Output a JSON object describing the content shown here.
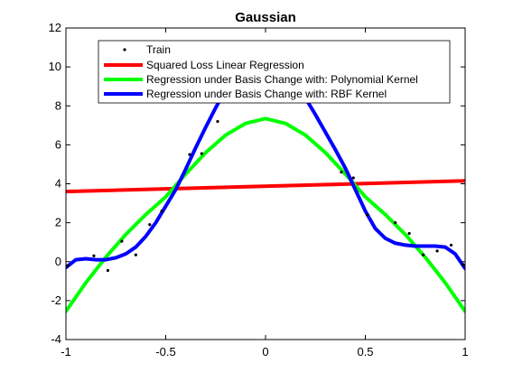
{
  "chart_data": {
    "type": "line",
    "title": "Gaussian",
    "xlabel": "",
    "ylabel": "",
    "xlim": [
      -1,
      1
    ],
    "ylim": [
      -4,
      12
    ],
    "x_ticks": [
      -1,
      -0.5,
      0,
      0.5,
      1
    ],
    "x_tick_labels": [
      "-1",
      "-0.5",
      "0",
      "0.5",
      "1"
    ],
    "y_ticks": [
      -4,
      -2,
      0,
      2,
      4,
      6,
      8,
      10,
      12
    ],
    "y_tick_labels": [
      "-4",
      "-2",
      "0",
      "2",
      "4",
      "6",
      "8",
      "10",
      "12"
    ],
    "grid": false,
    "legend_position": "top-right",
    "series": [
      {
        "name": "Train",
        "style": "points",
        "color": "#000000",
        "points": [
          [
            -0.99,
            -0.2
          ],
          [
            -0.86,
            0.3
          ],
          [
            -0.79,
            -0.45
          ],
          [
            -0.72,
            1.05
          ],
          [
            -0.65,
            0.35
          ],
          [
            -0.58,
            1.9
          ],
          [
            -0.52,
            2.6
          ],
          [
            -0.38,
            5.5
          ],
          [
            -0.32,
            5.55
          ],
          [
            -0.24,
            7.2
          ],
          [
            0.38,
            4.6
          ],
          [
            0.44,
            4.3
          ],
          [
            0.51,
            2.4
          ],
          [
            0.65,
            2.0
          ],
          [
            0.72,
            1.45
          ],
          [
            0.79,
            0.35
          ],
          [
            0.86,
            0.55
          ],
          [
            0.93,
            0.85
          ],
          [
            0.99,
            -0.15
          ]
        ]
      },
      {
        "name": "Squared Loss Linear Regression",
        "style": "line",
        "color": "#ff0000",
        "x": [
          -1,
          1
        ],
        "y": [
          3.6,
          4.15
        ]
      },
      {
        "name": "Regression under Basis Change with: Polynomial Kernel",
        "style": "line",
        "color": "#00ff00",
        "x": [
          -1,
          -0.9,
          -0.8,
          -0.7,
          -0.6,
          -0.5,
          -0.4,
          -0.3,
          -0.2,
          -0.1,
          0,
          0.1,
          0.2,
          0.3,
          0.4,
          0.5,
          0.6,
          0.7,
          0.8,
          0.9,
          1
        ],
        "y": [
          -2.55,
          -1.08,
          0.23,
          1.4,
          2.42,
          3.33,
          4.5,
          5.6,
          6.5,
          7.1,
          7.35,
          7.1,
          6.5,
          5.6,
          4.5,
          3.33,
          2.42,
          1.4,
          0.23,
          -1.08,
          -2.55
        ]
      },
      {
        "name": "Regression under Basis Change with: RBF Kernel",
        "style": "line",
        "color": "#0000ff",
        "x": [
          -1,
          -0.95,
          -0.9,
          -0.85,
          -0.8,
          -0.75,
          -0.7,
          -0.65,
          -0.6,
          -0.55,
          -0.5,
          -0.45,
          -0.4,
          -0.35,
          -0.3,
          -0.25,
          -0.2,
          -0.15,
          -0.1,
          -0.05,
          0,
          0.05,
          0.1,
          0.15,
          0.2,
          0.25,
          0.3,
          0.35,
          0.4,
          0.45,
          0.5,
          0.55,
          0.6,
          0.65,
          0.7,
          0.75,
          0.8,
          0.85,
          0.9,
          0.95,
          1
        ],
        "y": [
          -0.3,
          0.1,
          0.15,
          0.1,
          0.1,
          0.2,
          0.4,
          0.75,
          1.3,
          2.0,
          2.85,
          3.7,
          4.75,
          5.85,
          6.9,
          7.9,
          8.8,
          9.6,
          10.2,
          10.55,
          10.6,
          10.4,
          9.9,
          9.2,
          8.4,
          7.55,
          6.65,
          5.75,
          4.8,
          3.7,
          2.6,
          1.7,
          1.2,
          0.95,
          0.85,
          0.8,
          0.8,
          0.8,
          0.75,
          0.4,
          -0.35
        ]
      }
    ]
  }
}
